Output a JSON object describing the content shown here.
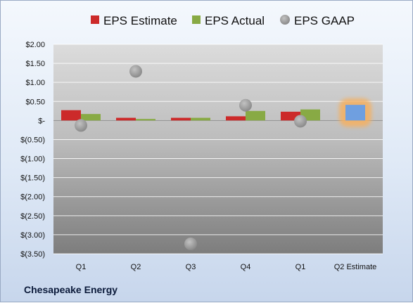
{
  "chart_data": {
    "type": "bar",
    "categories": [
      "Q1",
      "Q2",
      "Q3",
      "Q4",
      "Q1",
      "Q2 Estimate"
    ],
    "series": [
      {
        "name": "EPS Estimate",
        "type": "bar",
        "color": "#cc2a2a",
        "values": [
          0.27,
          0.07,
          0.07,
          0.11,
          0.23,
          null
        ]
      },
      {
        "name": "EPS Actual",
        "type": "bar",
        "color": "#88aa44",
        "values": [
          0.17,
          0.04,
          0.07,
          0.25,
          0.29,
          0.41
        ]
      },
      {
        "name": "EPS GAAP",
        "type": "scatter",
        "color": "#9a9a9a",
        "values": [
          -0.13,
          1.29,
          -3.24,
          0.4,
          -0.02,
          null
        ]
      }
    ],
    "highlight": {
      "category_index": 5,
      "bar_color": "#6f9fe0",
      "glow_color": "#f5b060"
    },
    "ylim": [
      -3.5,
      2.0
    ],
    "yticks": [
      "$2.00",
      "$1.50",
      "$1.00",
      "$0.50",
      "$-",
      "$(0.50)",
      "$(1.00)",
      "$(1.50)",
      "$(2.00)",
      "$(2.50)",
      "$(3.00)",
      "$(3.50)"
    ],
    "ytick_values": [
      2.0,
      1.5,
      1.0,
      0.5,
      0,
      -0.5,
      -1.0,
      -1.5,
      -2.0,
      -2.5,
      -3.0,
      -3.5
    ],
    "grid": true,
    "legend": "top",
    "company": "Chesapeake Energy"
  }
}
